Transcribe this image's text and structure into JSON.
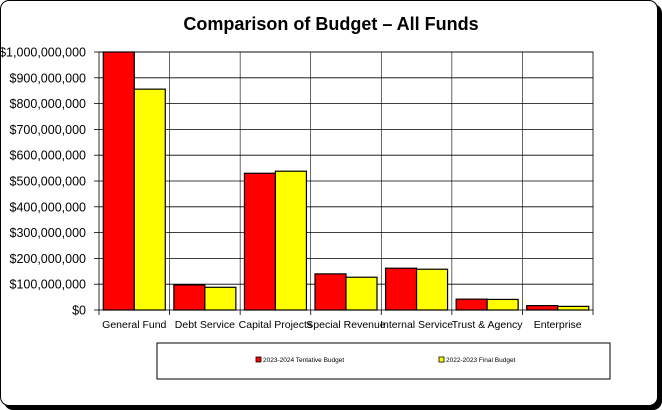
{
  "chart_data": {
    "type": "bar",
    "title": "Comparison of Budget – All Funds",
    "categories": [
      "General Fund",
      "Debt Service",
      "Capital Projects",
      "Special Revenue",
      "Internal Service",
      "Trust & Agency",
      "Enterprise"
    ],
    "series": [
      {
        "name": "2023-2024 Tentative Budget",
        "color": "#ff0000",
        "values": [
          1000000000,
          97000000,
          530000000,
          140000000,
          162000000,
          42000000,
          17000000
        ]
      },
      {
        "name": "2022-2023 Final Budget",
        "color": "#ffff00",
        "values": [
          856000000,
          88000000,
          538000000,
          127000000,
          158000000,
          41000000,
          14000000
        ]
      }
    ],
    "ylim": [
      0,
      1000000000
    ],
    "yticks": [
      "$0",
      "$100,000,000",
      "$200,000,000",
      "$300,000,000",
      "$400,000,000",
      "$500,000,000",
      "$600,000,000",
      "$700,000,000",
      "$800,000,000",
      "$900,000,000",
      "$1,000,000,000"
    ],
    "grid": true,
    "legend_position": "bottom"
  }
}
